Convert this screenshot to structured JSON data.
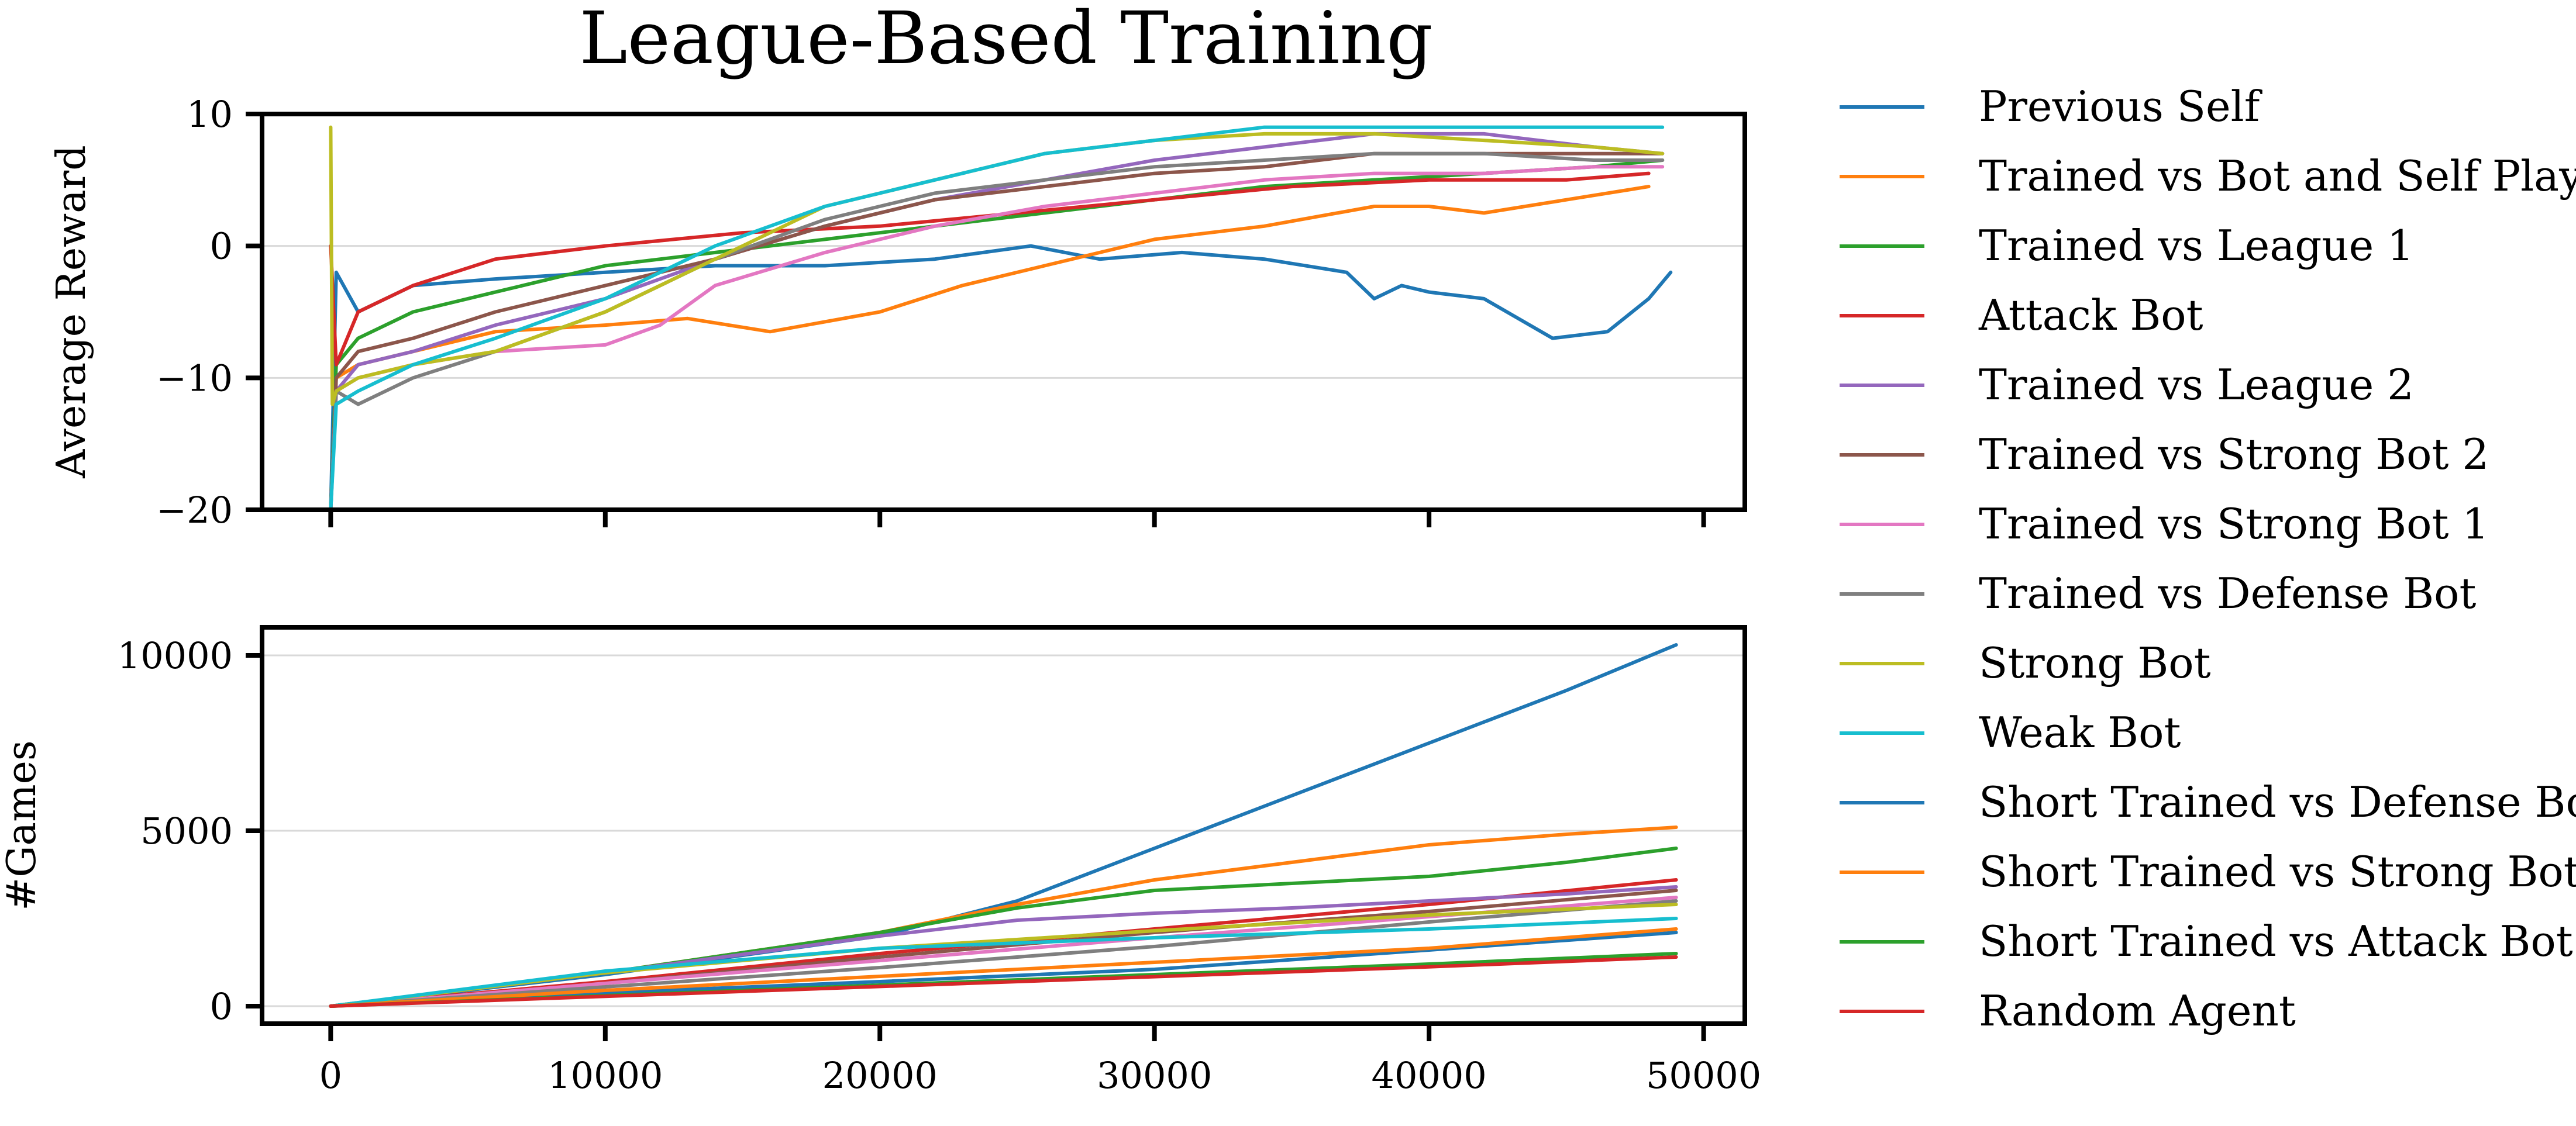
{
  "chart_data": {
    "type": "line",
    "title": "League-Based Training",
    "legend_position": "right",
    "grid": "horizontal",
    "xlabel": "",
    "xticks": [
      0,
      10000,
      20000,
      30000,
      40000,
      50000
    ],
    "xlim": [
      -2500,
      51500
    ],
    "series_meta": [
      {
        "name": "Previous Self",
        "color": "#1f77b4"
      },
      {
        "name": "Trained vs Bot and Self Play",
        "color": "#ff7f0e"
      },
      {
        "name": "Trained vs League 1",
        "color": "#2ca02c"
      },
      {
        "name": "Attack Bot",
        "color": "#d62728"
      },
      {
        "name": "Trained vs League 2",
        "color": "#9467bd"
      },
      {
        "name": "Trained vs Strong Bot 2",
        "color": "#8c564b"
      },
      {
        "name": "Trained vs Strong Bot 1",
        "color": "#e377c2"
      },
      {
        "name": "Trained vs Defense Bot",
        "color": "#7f7f7f"
      },
      {
        "name": "Strong Bot",
        "color": "#bcbd22"
      },
      {
        "name": "Weak Bot",
        "color": "#17becf"
      },
      {
        "name": "Short Trained vs Defense Bot",
        "color": "#1f77b4"
      },
      {
        "name": "Short Trained vs Strong Bot",
        "color": "#ff7f0e"
      },
      {
        "name": "Short Trained vs Attack Bot",
        "color": "#2ca02c"
      },
      {
        "name": "Random Agent",
        "color": "#d62728"
      }
    ],
    "panels": [
      {
        "ylabel": "Average Reward",
        "ylim": [
          -20,
          10
        ],
        "yticks": [
          -20,
          -10,
          0,
          10
        ],
        "ytick_labels": [
          "−20",
          "−10",
          "0",
          "10"
        ],
        "series": [
          {
            "name": "Previous Self",
            "x": [
              0,
              200,
              1000,
              3000,
              6000,
              10000,
              14000,
              18000,
              22000,
              25500,
              28000,
              31000,
              34000,
              37000,
              38000,
              39000,
              40000,
              42000,
              44500,
              46500,
              48000,
              48800
            ],
            "y": [
              -20,
              -2,
              -5,
              -3,
              -2.5,
              -2,
              -1.5,
              -1.5,
              -1,
              0,
              -1,
              -0.5,
              -1,
              -2,
              -4,
              -3,
              -3.5,
              -4,
              -7,
              -6.5,
              -4,
              -2
            ]
          },
          {
            "name": "Trained vs Bot and Self Play",
            "x": [
              0,
              200,
              1000,
              3000,
              6000,
              10000,
              13000,
              16000,
              20000,
              23000,
              26000,
              30000,
              34000,
              38000,
              40000,
              42000,
              45000,
              48000
            ],
            "y": [
              -20,
              -10,
              -9,
              -8,
              -6.5,
              -6,
              -5.5,
              -6.5,
              -5,
              -3,
              -1.5,
              0.5,
              1.5,
              3,
              3,
              2.5,
              3.5,
              4.5
            ]
          },
          {
            "name": "Trained vs League 1",
            "x": [
              0,
              200,
              1000,
              3000,
              6000,
              10000,
              14000,
              18000,
              22000,
              26000,
              30000,
              34000,
              38000,
              42000,
              46000,
              48500
            ],
            "y": [
              -20,
              -9,
              -7,
              -5,
              -3.5,
              -1.5,
              -0.5,
              0.5,
              1.5,
              2.5,
              3.5,
              4.5,
              5,
              5.5,
              6,
              6.5
            ]
          },
          {
            "name": "Attack Bot",
            "x": [
              0,
              200,
              1000,
              3000,
              6000,
              10000,
              15000,
              20000,
              25000,
              30000,
              35000,
              40000,
              45000,
              48000
            ],
            "y": [
              0,
              -9,
              -5,
              -3,
              -1,
              0,
              1,
              1.5,
              2.5,
              3.5,
              4.5,
              5,
              5,
              5.5
            ]
          },
          {
            "name": "Trained vs League 2",
            "x": [
              0,
              200,
              1000,
              3000,
              6000,
              10000,
              14000,
              18000,
              22000,
              26000,
              30000,
              34000,
              38000,
              42000,
              46000,
              48500
            ],
            "y": [
              -20,
              -11,
              -9,
              -8,
              -6,
              -4,
              -1,
              1.5,
              3.5,
              5,
              6.5,
              7.5,
              8.5,
              8.5,
              7.5,
              7
            ]
          },
          {
            "name": "Trained vs Strong Bot 2",
            "x": [
              0,
              200,
              1000,
              3000,
              6000,
              10000,
              14000,
              18000,
              22000,
              26000,
              30000,
              34000,
              38000,
              42000,
              46000,
              48500
            ],
            "y": [
              -20,
              -10,
              -8,
              -7,
              -5,
              -3,
              -1,
              1.5,
              3.5,
              4.5,
              5.5,
              6,
              7,
              7,
              7,
              7
            ]
          },
          {
            "name": "Trained vs Strong Bot 1",
            "x": [
              0,
              200,
              1000,
              3000,
              6000,
              10000,
              12000,
              14000,
              18000,
              22000,
              26000,
              30000,
              34000,
              38000,
              42000,
              46000,
              48500
            ],
            "y": [
              -20,
              -11,
              -10,
              -9,
              -8,
              -7.5,
              -6,
              -3,
              -0.5,
              1.5,
              3,
              4,
              5,
              5.5,
              5.5,
              6,
              6
            ]
          },
          {
            "name": "Trained vs Defense Bot",
            "x": [
              0,
              200,
              1000,
              3000,
              6000,
              10000,
              14000,
              18000,
              22000,
              26000,
              30000,
              34000,
              38000,
              42000,
              46000,
              48500
            ],
            "y": [
              -20,
              -11,
              -12,
              -10,
              -8,
              -5,
              -1,
              2,
              4,
              5,
              6,
              6.5,
              7,
              7,
              6.5,
              6.5
            ]
          },
          {
            "name": "Strong Bot",
            "x": [
              0,
              60,
              200,
              1000,
              3000,
              6000,
              10000,
              14000,
              18000,
              22000,
              26000,
              30000,
              34000,
              38000,
              42000,
              46000,
              48500
            ],
            "y": [
              9,
              -12,
              -11,
              -10,
              -9,
              -8,
              -5,
              -1,
              3,
              5,
              7,
              8,
              8.5,
              8.5,
              8,
              7.5,
              7
            ]
          },
          {
            "name": "Weak Bot",
            "x": [
              0,
              200,
              1000,
              3000,
              6000,
              10000,
              14000,
              18000,
              22000,
              26000,
              30000,
              34000,
              38000,
              42000,
              46000,
              48500
            ],
            "y": [
              -20,
              -12,
              -11,
              -9,
              -7,
              -4,
              0,
              3,
              5,
              7,
              8,
              9,
              9,
              9,
              9,
              9
            ]
          },
          {
            "name": "Short Trained vs Defense Bot",
            "x": [],
            "y": []
          },
          {
            "name": "Short Trained vs Strong Bot",
            "x": [],
            "y": []
          },
          {
            "name": "Short Trained vs Attack Bot",
            "x": [],
            "y": []
          },
          {
            "name": "Random Agent",
            "x": [],
            "y": []
          }
        ]
      },
      {
        "ylabel": "#Games",
        "ylim": [
          -500,
          10800
        ],
        "yticks": [
          0,
          5000,
          10000
        ],
        "ytick_labels": [
          "0",
          "5000",
          "10000"
        ],
        "series": [
          {
            "name": "Previous Self",
            "x": [
              0,
              10000,
              20000,
              25000,
              30000,
              35000,
              40000,
              45000,
              49000
            ],
            "y": [
              0,
              900,
              2000,
              3000,
              4500,
              6000,
              7500,
              9000,
              10300
            ]
          },
          {
            "name": "Trained vs Bot and Self Play",
            "x": [
              0,
              10000,
              20000,
              25000,
              30000,
              35000,
              40000,
              45000,
              49000
            ],
            "y": [
              0,
              950,
              2100,
              2900,
              3600,
              4100,
              4600,
              4900,
              5100
            ]
          },
          {
            "name": "Trained vs League 1",
            "x": [
              0,
              10000,
              20000,
              25000,
              30000,
              35000,
              40000,
              45000,
              49000
            ],
            "y": [
              0,
              950,
              2100,
              2800,
              3300,
              3500,
              3700,
              4100,
              4500
            ]
          },
          {
            "name": "Attack Bot",
            "x": [
              0,
              10000,
              20000,
              30000,
              40000,
              49000
            ],
            "y": [
              0,
              700,
              1500,
              2200,
              2900,
              3600
            ]
          },
          {
            "name": "Trained vs League 2",
            "x": [
              0,
              10000,
              20000,
              25000,
              30000,
              35000,
              40000,
              45000,
              49000
            ],
            "y": [
              0,
              950,
              2000,
              2450,
              2650,
              2800,
              3000,
              3200,
              3400
            ]
          },
          {
            "name": "Trained vs Strong Bot 2",
            "x": [
              0,
              10000,
              20000,
              30000,
              40000,
              49000
            ],
            "y": [
              0,
              650,
              1400,
              2100,
              2700,
              3300
            ]
          },
          {
            "name": "Trained vs Strong Bot 1",
            "x": [
              0,
              10000,
              20000,
              30000,
              40000,
              49000
            ],
            "y": [
              0,
              650,
              1300,
              1950,
              2550,
              3100
            ]
          },
          {
            "name": "Trained vs Defense Bot",
            "x": [
              0,
              10000,
              20000,
              30000,
              40000,
              49000
            ],
            "y": [
              0,
              550,
              1100,
              1700,
              2400,
              3000
            ]
          },
          {
            "name": "Strong Bot",
            "x": [
              0,
              10000,
              20000,
              30000,
              40000,
              49000
            ],
            "y": [
              0,
              950,
              1650,
              2150,
              2600,
              2900
            ]
          },
          {
            "name": "Weak Bot",
            "x": [
              0,
              10000,
              20000,
              30000,
              40000,
              49000
            ],
            "y": [
              0,
              1000,
              1650,
              1950,
              2200,
              2500
            ]
          },
          {
            "name": "Short Trained vs Defense Bot",
            "x": [
              0,
              10000,
              20000,
              30000,
              40000,
              49000
            ],
            "y": [
              0,
              380,
              700,
              1050,
              1600,
              2100
            ]
          },
          {
            "name": "Short Trained vs Strong Bot",
            "x": [
              0,
              10000,
              20000,
              30000,
              40000,
              49000
            ],
            "y": [
              0,
              450,
              850,
              1250,
              1650,
              2200
            ]
          },
          {
            "name": "Short Trained vs Attack Bot",
            "x": [
              0,
              10000,
              20000,
              30000,
              40000,
              49000
            ],
            "y": [
              0,
              300,
              600,
              900,
              1200,
              1500
            ]
          },
          {
            "name": "Random Agent",
            "x": [
              0,
              10000,
              20000,
              30000,
              40000,
              49000
            ],
            "y": [
              0,
              280,
              560,
              840,
              1120,
              1400
            ]
          }
        ]
      }
    ]
  }
}
